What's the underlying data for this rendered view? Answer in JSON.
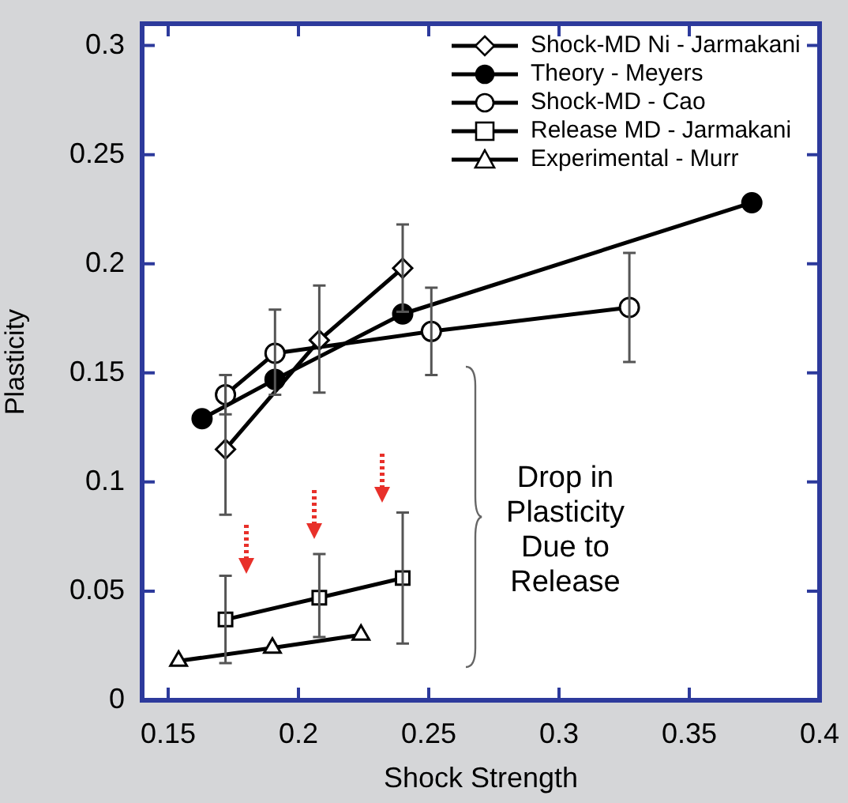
{
  "chart_data": {
    "type": "line",
    "xlabel": "Shock Strength",
    "ylabel": "Plasticity",
    "xlim": [
      0.14,
      0.4
    ],
    "ylim": [
      0,
      0.31
    ],
    "xticks": [
      0.15,
      0.2,
      0.25,
      0.3,
      0.35,
      0.4
    ],
    "yticks": [
      0,
      0.05,
      0.1,
      0.15,
      0.2,
      0.25,
      0.3
    ],
    "grid": false,
    "legend": "top right",
    "line_style": "solid",
    "annotations": [
      "Drop in Plasticity Due to Release"
    ],
    "series": [
      {
        "name": "Shock-MD Ni - Jarmakani",
        "color": "#000000",
        "marker": "diamond",
        "x": [
          0.172,
          0.208,
          0.24
        ],
        "values": [
          0.115,
          0.165,
          0.198
        ],
        "errors": [
          [
            0.085,
            0.149
          ],
          [
            0.141,
            0.19
          ],
          [
            0.178,
            0.218
          ]
        ]
      },
      {
        "name": "Theory - Meyers",
        "color": "#000000",
        "marker": "circle",
        "x": [
          0.163,
          0.191,
          0.24,
          0.374
        ],
        "values": [
          0.129,
          0.147,
          0.177,
          0.228
        ]
      },
      {
        "name": "Shock-MD - Cao",
        "color": "#000000",
        "marker": "circle",
        "x": [
          0.172,
          0.191,
          0.251,
          0.327
        ],
        "values": [
          0.14,
          0.159,
          0.169,
          0.18
        ],
        "errors": [
          [
            0.131,
            0.149
          ],
          [
            0.14,
            0.179
          ],
          [
            0.149,
            0.189
          ],
          [
            0.155,
            0.205
          ]
        ]
      },
      {
        "name": "Release MD - Jarmakani",
        "color": "#000000",
        "marker": "square",
        "x": [
          0.172,
          0.208,
          0.24
        ],
        "values": [
          0.037,
          0.047,
          0.056
        ],
        "errors": [
          [
            0.017,
            0.057
          ],
          [
            0.029,
            0.067
          ],
          [
            0.026,
            0.086
          ]
        ]
      },
      {
        "name": "Experimental - Murr",
        "color": "#000000",
        "marker": "triangle",
        "x": [
          0.154,
          0.19,
          0.224
        ],
        "values": [
          0.018,
          0.024,
          0.03
        ]
      }
    ]
  }
}
